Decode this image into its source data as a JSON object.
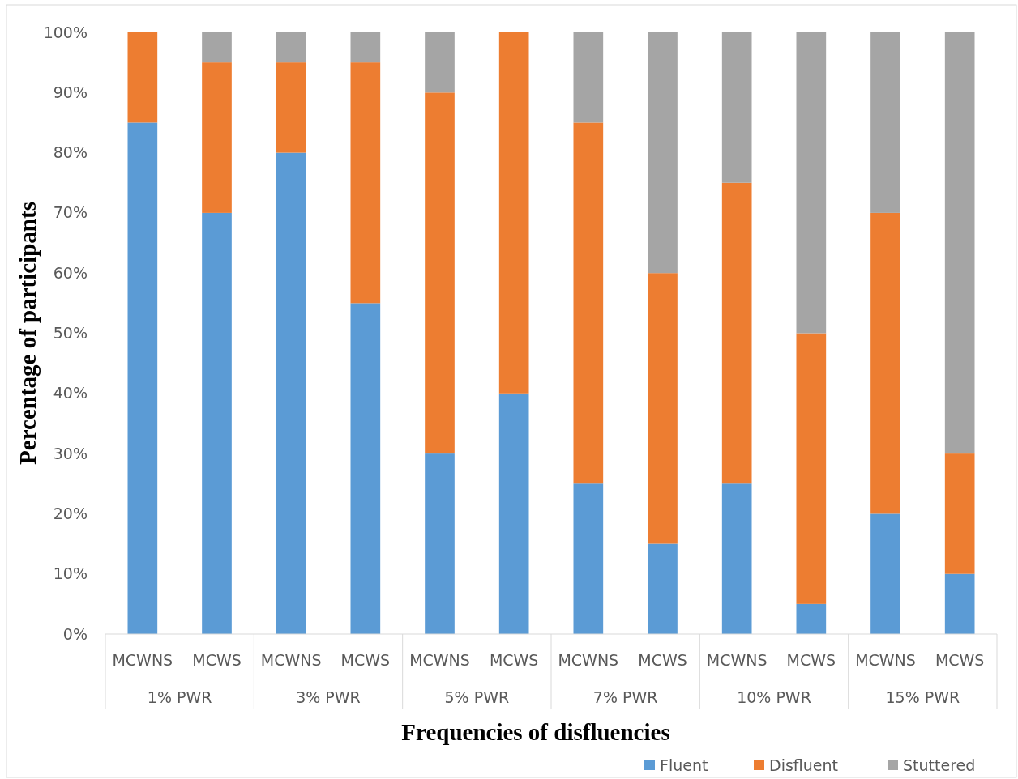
{
  "chart_data": {
    "type": "bar",
    "stacked": true,
    "xlabel": "Frequencies of disfluencies",
    "ylabel": "Percentage of participants",
    "categories": [
      "MCWNS",
      "MCWS",
      "MCWNS",
      "MCWS",
      "MCWNS",
      "MCWS",
      "MCWNS",
      "MCWS",
      "MCWNS",
      "MCWS",
      "MCWNS",
      "MCWS"
    ],
    "annotations": [
      "1% PWR",
      "3% PWR",
      "5% PWR",
      "7% PWR",
      "10% PWR",
      "15% PWR"
    ],
    "series": [
      {
        "name": "Fluent",
        "color": "#5b9bd5",
        "values": [
          85,
          70,
          80,
          55,
          30,
          40,
          25,
          15,
          25,
          5,
          20,
          10
        ]
      },
      {
        "name": "Disfluent",
        "color": "#ed7d31",
        "values": [
          15,
          25,
          15,
          40,
          60,
          60,
          60,
          45,
          50,
          45,
          50,
          20
        ]
      },
      {
        "name": "Stuttered",
        "color": "#a5a5a5",
        "values": [
          0,
          5,
          5,
          5,
          10,
          0,
          15,
          40,
          25,
          50,
          30,
          70
        ]
      }
    ],
    "ylim": [
      0,
      100
    ],
    "yticks": [
      {
        "value": 0,
        "label": "0%"
      },
      {
        "value": 10,
        "label": "10%"
      },
      {
        "value": 20,
        "label": "20%"
      },
      {
        "value": 30,
        "label": "30%"
      },
      {
        "value": 40,
        "label": "40%"
      },
      {
        "value": 50,
        "label": "50%"
      },
      {
        "value": 60,
        "label": "60%"
      },
      {
        "value": 70,
        "label": "70%"
      },
      {
        "value": 80,
        "label": "80%"
      },
      {
        "value": 90,
        "label": "90%"
      },
      {
        "value": 100,
        "label": "100%"
      }
    ],
    "grid": false,
    "legend": "bottom right"
  }
}
